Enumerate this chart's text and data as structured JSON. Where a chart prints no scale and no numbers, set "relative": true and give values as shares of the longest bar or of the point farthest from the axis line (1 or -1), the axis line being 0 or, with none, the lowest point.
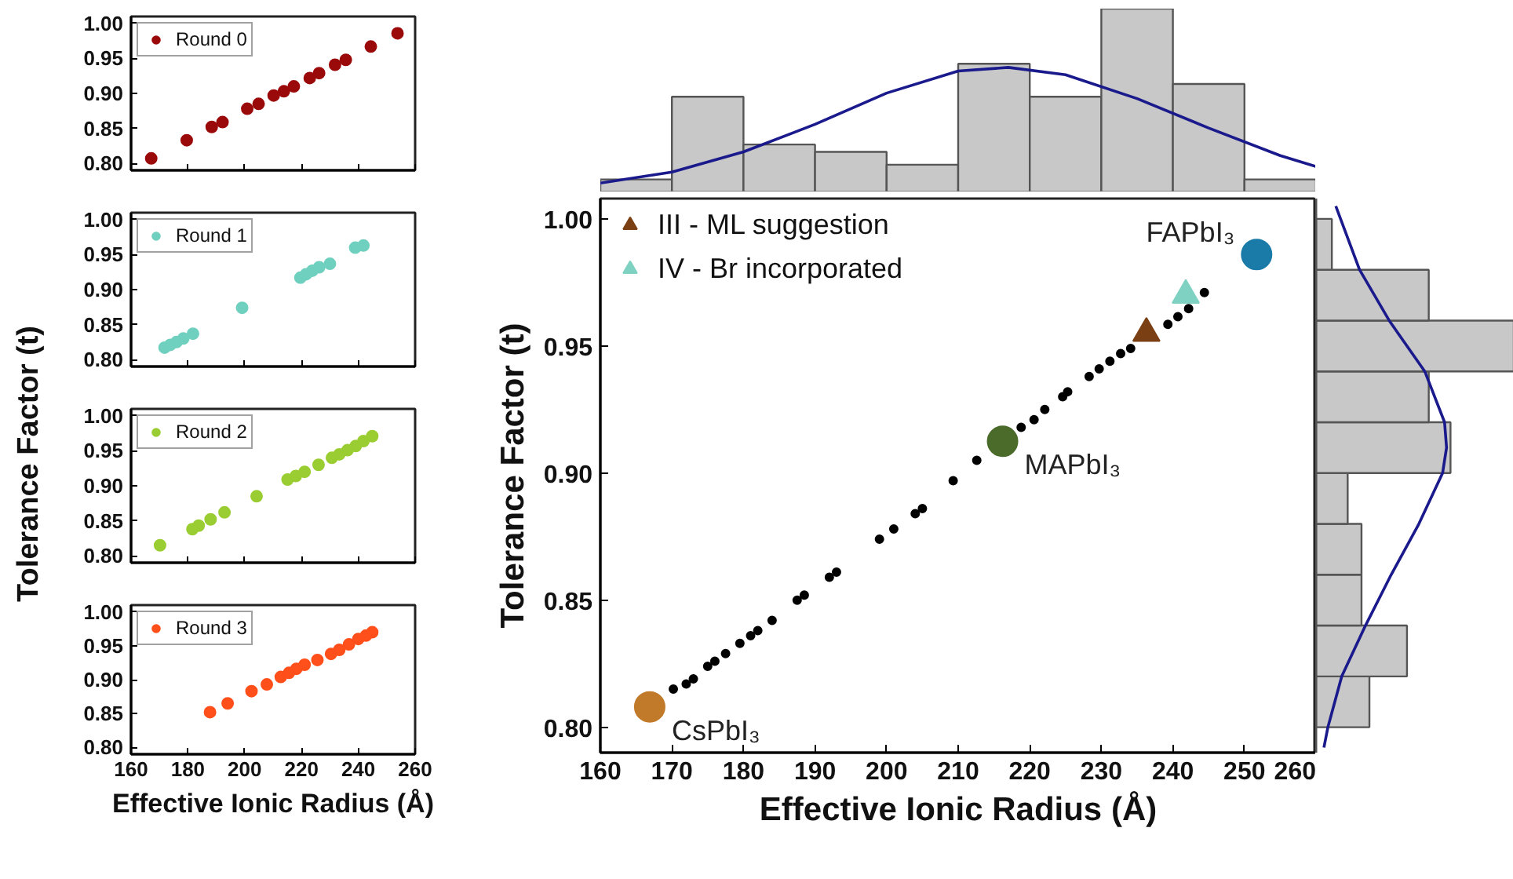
{
  "chart_data": [
    {
      "type": "scatter",
      "marker": "circle",
      "legend": "top left",
      "tick_labels": "y",
      "xlim": [
        160,
        260
      ],
      "ylim": [
        0.79,
        1.01
      ],
      "xticks": [
        160,
        180,
        200,
        220,
        240,
        260
      ],
      "yticks": [
        {
          "value": 0.8,
          "label": "0.80"
        },
        {
          "value": 0.85,
          "label": "0.85"
        },
        {
          "value": 0.9,
          "label": "0.90"
        },
        {
          "value": 0.95,
          "label": "0.95"
        },
        {
          "value": 1.0,
          "label": "1.00"
        }
      ],
      "series": [
        {
          "name": "Round 0",
          "color": "#9b0a0a",
          "x": [
            167.1,
            179.6,
            188.4,
            192.2,
            200.9,
            204.9,
            210.2,
            213.8,
            217.3,
            222.9,
            226.2,
            231.8,
            235.6,
            244.4,
            253.8
          ],
          "values": [
            0.807,
            0.833,
            0.852,
            0.859,
            0.878,
            0.885,
            0.897,
            0.903,
            0.91,
            0.922,
            0.929,
            0.941,
            0.948,
            0.967,
            0.986
          ]
        }
      ]
    },
    {
      "type": "scatter",
      "marker": "circle",
      "legend": "top left",
      "tick_labels": "y",
      "ylabel": "Tolerance Factor (t)",
      "xlim": [
        160,
        260
      ],
      "ylim": [
        0.79,
        1.01
      ],
      "xticks": [
        160,
        180,
        200,
        220,
        240,
        260
      ],
      "yticks": [
        {
          "value": 0.8,
          "label": "0.80"
        },
        {
          "value": 0.85,
          "label": "0.85"
        },
        {
          "value": 0.9,
          "label": "0.90"
        },
        {
          "value": 0.95,
          "label": "0.95"
        },
        {
          "value": 1.0,
          "label": "1.00"
        }
      ],
      "series": [
        {
          "name": "Round 1",
          "color": "#6fd0bf",
          "x": [
            171.8,
            173.8,
            176.0,
            178.4,
            181.8,
            199.1,
            219.6,
            221.6,
            223.8,
            226.2,
            230.0,
            238.9,
            241.8
          ],
          "values": [
            0.817,
            0.821,
            0.825,
            0.83,
            0.837,
            0.874,
            0.917,
            0.922,
            0.927,
            0.932,
            0.937,
            0.96,
            0.963
          ]
        }
      ]
    },
    {
      "type": "scatter",
      "marker": "circle",
      "legend": "top left",
      "tick_labels": "y",
      "xlim": [
        160,
        260
      ],
      "ylim": [
        0.79,
        1.01
      ],
      "xticks": [
        160,
        180,
        200,
        220,
        240,
        260
      ],
      "yticks": [
        {
          "value": 0.8,
          "label": "0.80"
        },
        {
          "value": 0.85,
          "label": "0.85"
        },
        {
          "value": 0.9,
          "label": "0.90"
        },
        {
          "value": 0.95,
          "label": "0.95"
        },
        {
          "value": 1.0,
          "label": "1.00"
        }
      ],
      "series": [
        {
          "name": "Round 2",
          "color": "#9acd32",
          "x": [
            170.2,
            181.6,
            183.8,
            188.0,
            192.9,
            204.2,
            215.1,
            218.0,
            221.1,
            226.0,
            230.7,
            233.3,
            236.2,
            239.1,
            241.8,
            244.9
          ],
          "values": [
            0.815,
            0.838,
            0.843,
            0.852,
            0.862,
            0.885,
            0.909,
            0.914,
            0.92,
            0.93,
            0.94,
            0.945,
            0.951,
            0.957,
            0.964,
            0.971
          ]
        }
      ]
    },
    {
      "type": "scatter",
      "marker": "circle",
      "legend": "top left",
      "xlabel": "Effective Ionic Radius (Å)",
      "xlim": [
        160,
        260
      ],
      "ylim": [
        0.79,
        1.01
      ],
      "xticks": [
        160,
        180,
        200,
        220,
        240,
        260
      ],
      "yticks": [
        {
          "value": 0.8,
          "label": "0.80"
        },
        {
          "value": 0.85,
          "label": "0.85"
        },
        {
          "value": 0.9,
          "label": "0.90"
        },
        {
          "value": 0.95,
          "label": "0.95"
        },
        {
          "value": 1.0,
          "label": "1.00"
        }
      ],
      "series": [
        {
          "name": "Round 3",
          "color": "#ff4f1a",
          "x": [
            187.8,
            194.0,
            202.4,
            207.8,
            212.7,
            215.6,
            218.2,
            221.1,
            225.6,
            230.4,
            233.3,
            236.7,
            240.0,
            242.7,
            244.9
          ],
          "values": [
            0.852,
            0.865,
            0.883,
            0.893,
            0.904,
            0.91,
            0.916,
            0.922,
            0.929,
            0.938,
            0.944,
            0.952,
            0.96,
            0.965,
            0.97
          ]
        }
      ]
    },
    {
      "type": "histogram",
      "relative": true,
      "tick_labels": false,
      "xlim": [
        160,
        260
      ],
      "color": "#c8c8c8",
      "bins": [
        160,
        170,
        180,
        190,
        200,
        210,
        220,
        230,
        240,
        250,
        260
      ],
      "values": [
        0.07,
        0.52,
        0.26,
        0.22,
        0.15,
        0.7,
        0.52,
        1.0,
        0.59,
        0.07
      ],
      "series": [
        {
          "type": "line",
          "color": "#1a1a8c",
          "x": [
            160,
            170,
            180,
            190,
            200,
            210,
            217,
            225,
            235,
            245,
            255,
            260
          ],
          "values": [
            0.05,
            0.11,
            0.22,
            0.37,
            0.54,
            0.66,
            0.68,
            0.64,
            0.51,
            0.35,
            0.2,
            0.14
          ]
        }
      ]
    },
    {
      "type": "scatter",
      "xlabel": "Effective Ionic Radius (Å)",
      "ylabel": "Tolerance Factor (t)",
      "legend": "top left",
      "xlim": [
        160,
        260
      ],
      "ylim": [
        0.79,
        1.008
      ],
      "xticks": [
        160,
        170,
        180,
        190,
        200,
        210,
        220,
        230,
        240,
        250,
        260
      ],
      "yticks": [
        {
          "value": 0.8,
          "label": "0.80"
        },
        {
          "value": 0.85,
          "label": "0.85"
        },
        {
          "value": 0.9,
          "label": "0.90"
        },
        {
          "value": 0.95,
          "label": "0.95"
        },
        {
          "value": 1.0,
          "label": "1.00"
        }
      ],
      "series": [
        {
          "color": "#000000",
          "marker": "circle",
          "x": [
            170.2,
            172,
            173,
            175,
            176,
            177.5,
            179.5,
            181,
            182,
            184,
            187.5,
            188.5,
            192,
            193,
            199,
            201,
            204,
            205,
            209.3,
            212.6,
            218.8,
            220.6,
            222.1,
            224.6,
            225.3,
            228.3,
            229.7,
            231.2,
            232.7,
            234.1,
            239.3,
            240.7,
            242.2,
            244.4
          ],
          "values": [
            0.815,
            0.817,
            0.819,
            0.824,
            0.826,
            0.829,
            0.833,
            0.836,
            0.838,
            0.842,
            0.85,
            0.852,
            0.859,
            0.861,
            0.874,
            0.878,
            0.884,
            0.886,
            0.897,
            0.905,
            0.918,
            0.921,
            0.925,
            0.93,
            0.932,
            0.938,
            0.941,
            0.944,
            0.947,
            0.949,
            0.9585,
            0.9615,
            0.9647,
            0.971
          ]
        },
        {
          "color": "#c07a2a",
          "marker": "circle",
          "x": [
            166.9
          ],
          "values": [
            0.808
          ]
        },
        {
          "color": "#4a6b2a",
          "marker": "circle",
          "x": [
            216.2
          ],
          "values": [
            0.9125
          ]
        },
        {
          "color": "#1a7aa8",
          "marker": "circle",
          "x": [
            251.7
          ],
          "values": [
            0.986
          ]
        },
        {
          "name": "III - ML suggestion",
          "color": "#7a3f12",
          "marker": "triangle",
          "x": [
            236.3
          ],
          "values": [
            0.955
          ]
        },
        {
          "name": "IV - Br incorporated",
          "color": "#7fd1c1",
          "marker": "triangle",
          "x": [
            241.8
          ],
          "values": [
            0.97
          ]
        }
      ],
      "annotations": [
        {
          "text": "CsPbI₃",
          "x": 166.9,
          "y": 0.808
        },
        {
          "text": "MAPbI₃",
          "x": 216.2,
          "y": 0.9125
        },
        {
          "text": "FAPbI₃",
          "x": 251.7,
          "y": 0.986
        }
      ]
    },
    {
      "type": "histogram",
      "relative": true,
      "orientation": "horizontal",
      "tick_labels": false,
      "ylim": [
        0.79,
        1.008
      ],
      "color": "#c8c8c8",
      "bins": [
        0.8,
        0.82,
        0.84,
        0.86,
        0.88,
        0.9,
        0.92,
        0.94,
        0.96,
        0.98,
        1.0
      ],
      "values": [
        0.27,
        0.46,
        0.23,
        0.23,
        0.16,
        0.68,
        0.57,
        1.0,
        0.57,
        0.08
      ],
      "series": [
        {
          "type": "line",
          "color": "#1a1a8c",
          "x": [
            0.792,
            0.8,
            0.82,
            0.84,
            0.86,
            0.88,
            0.9,
            0.91,
            0.92,
            0.94,
            0.96,
            0.98,
            1.005
          ],
          "values": [
            0.04,
            0.06,
            0.13,
            0.25,
            0.38,
            0.52,
            0.64,
            0.66,
            0.65,
            0.55,
            0.37,
            0.22,
            0.1
          ]
        }
      ]
    }
  ]
}
